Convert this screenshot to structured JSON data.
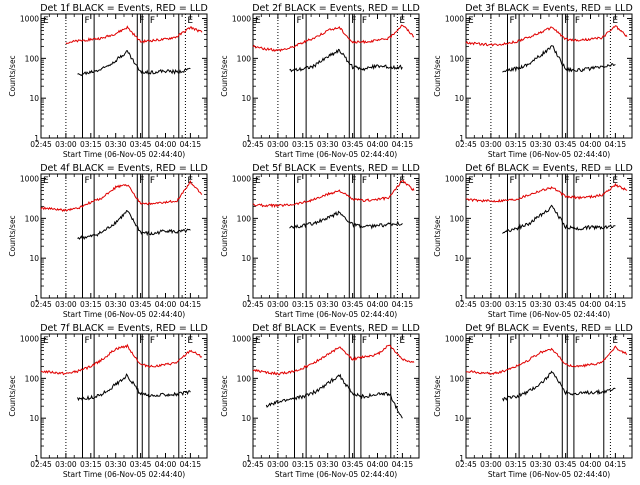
{
  "window": {
    "width": 640,
    "height": 480
  },
  "colors": {
    "events": "#000000",
    "lld": "#e00000",
    "background": "#ffffff"
  },
  "common": {
    "ylabel": "Counts/sec",
    "xlabel": "Start Time (06-Nov-05 02:44:40)",
    "xticks": [
      "02:45",
      "03:00",
      "03:15",
      "03:30",
      "03:45",
      "04:00",
      "04:15"
    ],
    "yticks": [
      "1",
      "10",
      "100",
      "1000"
    ],
    "markers": [
      "E",
      "F",
      "F",
      "F",
      "E"
    ]
  },
  "chart_data": [
    {
      "type": "line",
      "title": "Det 1f BLACK = Events, RED = LLD",
      "xlabel": "Start Time (06-Nov-05 02:44:40)",
      "ylabel": "Counts/sec",
      "xlim": [
        "02:45",
        "04:25"
      ],
      "ylim": [
        1,
        1300
      ],
      "yscale": "log",
      "x": [
        "02:45",
        "02:53",
        "03:00",
        "03:07",
        "03:15",
        "03:22",
        "03:30",
        "03:37",
        "03:45",
        "03:52",
        "04:00",
        "04:07",
        "04:15",
        "04:22"
      ],
      "series": [
        {
          "name": "Events",
          "values": [
            null,
            null,
            null,
            38,
            45,
            55,
            90,
            150,
            45,
            45,
            48,
            45,
            55,
            null
          ]
        },
        {
          "name": "LLD",
          "values": [
            null,
            null,
            250,
            270,
            300,
            320,
            420,
            600,
            260,
            280,
            300,
            350,
            600,
            450
          ]
        }
      ],
      "vlines_solid": [
        "03:10",
        "03:17",
        "03:43",
        "03:46",
        "03:50",
        "04:08"
      ],
      "vlines_dotted": [
        "03:00",
        "04:12"
      ]
    },
    {
      "type": "line",
      "title": "Det 2f BLACK = Events, RED = LLD",
      "xlabel": "Start Time (06-Nov-05 02:44:40)",
      "ylabel": "Counts/sec",
      "xlim": [
        "02:45",
        "04:25"
      ],
      "ylim": [
        1,
        1300
      ],
      "yscale": "log",
      "x": [
        "02:45",
        "02:53",
        "03:00",
        "03:07",
        "03:15",
        "03:22",
        "03:30",
        "03:37",
        "03:45",
        "03:52",
        "04:00",
        "04:07",
        "04:15",
        "04:22"
      ],
      "series": [
        {
          "name": "Events",
          "values": [
            null,
            null,
            null,
            50,
            55,
            65,
            110,
            160,
            60,
            55,
            65,
            60,
            60,
            null
          ]
        },
        {
          "name": "LLD",
          "values": [
            200,
            170,
            160,
            180,
            250,
            330,
            500,
            600,
            250,
            260,
            280,
            320,
            700,
            350
          ]
        }
      ],
      "vlines_solid": [
        "03:10",
        "03:17",
        "03:43",
        "03:46",
        "03:50",
        "04:08"
      ],
      "vlines_dotted": [
        "03:00",
        "04:12"
      ]
    },
    {
      "type": "line",
      "title": "Det 3f BLACK = Events, RED = LLD",
      "xlabel": "Start Time (06-Nov-05 02:44:40)",
      "ylabel": "Counts/sec",
      "xlim": [
        "02:45",
        "04:25"
      ],
      "ylim": [
        1,
        1300
      ],
      "yscale": "log",
      "x": [
        "02:45",
        "02:53",
        "03:00",
        "03:07",
        "03:15",
        "03:22",
        "03:30",
        "03:37",
        "03:45",
        "03:52",
        "04:00",
        "04:07",
        "04:15",
        "04:22"
      ],
      "series": [
        {
          "name": "Events",
          "values": [
            null,
            null,
            null,
            45,
            55,
            70,
            120,
            200,
            55,
            50,
            55,
            60,
            70,
            null
          ]
        },
        {
          "name": "LLD",
          "values": [
            250,
            230,
            220,
            230,
            260,
            330,
            450,
            600,
            300,
            280,
            300,
            330,
            650,
            350
          ]
        }
      ],
      "vlines_solid": [
        "03:10",
        "03:17",
        "03:43",
        "03:46",
        "03:50",
        "04:08"
      ],
      "vlines_dotted": [
        "03:00",
        "04:12"
      ]
    },
    {
      "type": "line",
      "title": "Det 4f BLACK = Events, RED = LLD",
      "xlabel": "Start Time (06-Nov-05 02:44:40)",
      "ylabel": "Counts/sec",
      "xlim": [
        "02:45",
        "04:25"
      ],
      "ylim": [
        1,
        1300
      ],
      "yscale": "log",
      "x": [
        "02:45",
        "02:53",
        "03:00",
        "03:07",
        "03:15",
        "03:22",
        "03:30",
        "03:37",
        "03:45",
        "03:52",
        "04:00",
        "04:07",
        "04:15",
        "04:22"
      ],
      "series": [
        {
          "name": "Events",
          "values": [
            null,
            null,
            null,
            32,
            35,
            45,
            80,
            150,
            45,
            40,
            50,
            45,
            50,
            null
          ]
        },
        {
          "name": "LLD",
          "values": [
            180,
            170,
            160,
            180,
            250,
            330,
            600,
            700,
            240,
            230,
            250,
            280,
            800,
            400
          ]
        }
      ],
      "vlines_solid": [
        "03:10",
        "03:17",
        "03:43",
        "03:46",
        "03:50",
        "04:08"
      ],
      "vlines_dotted": [
        "03:00",
        "04:12"
      ]
    },
    {
      "type": "line",
      "title": "Det 5f BLACK = Events, RED = LLD",
      "xlabel": "Start Time (06-Nov-05 02:44:40)",
      "ylabel": "Counts/sec",
      "xlim": [
        "02:45",
        "04:25"
      ],
      "ylim": [
        1,
        1300
      ],
      "yscale": "log",
      "x": [
        "02:45",
        "02:53",
        "03:00",
        "03:07",
        "03:15",
        "03:22",
        "03:30",
        "03:37",
        "03:45",
        "03:52",
        "04:00",
        "04:07",
        "04:15",
        "04:22"
      ],
      "series": [
        {
          "name": "Events",
          "values": [
            null,
            null,
            null,
            60,
            65,
            75,
            100,
            140,
            70,
            60,
            65,
            70,
            75,
            null
          ]
        },
        {
          "name": "LLD",
          "values": [
            220,
            210,
            210,
            220,
            250,
            300,
            400,
            500,
            300,
            280,
            300,
            330,
            900,
            500
          ]
        }
      ],
      "vlines_solid": [
        "03:10",
        "03:17",
        "03:43",
        "03:46",
        "03:50",
        "04:08"
      ],
      "vlines_dotted": [
        "03:00",
        "04:12"
      ]
    },
    {
      "type": "line",
      "title": "Det 6f BLACK = Events, RED = LLD",
      "xlabel": "Start Time (06-Nov-05 02:44:40)",
      "ylabel": "Counts/sec",
      "xlim": [
        "02:45",
        "04:25"
      ],
      "ylim": [
        1,
        1300
      ],
      "yscale": "log",
      "x": [
        "02:45",
        "02:53",
        "03:00",
        "03:07",
        "03:15",
        "03:22",
        "03:30",
        "03:37",
        "03:45",
        "03:52",
        "04:00",
        "04:07",
        "04:15",
        "04:22"
      ],
      "series": [
        {
          "name": "Events",
          "values": [
            null,
            null,
            null,
            45,
            55,
            70,
            120,
            200,
            60,
            55,
            60,
            60,
            65,
            null
          ]
        },
        {
          "name": "LLD",
          "values": [
            300,
            280,
            270,
            280,
            300,
            380,
            500,
            600,
            350,
            330,
            350,
            380,
            700,
            500
          ]
        }
      ],
      "vlines_solid": [
        "03:10",
        "03:17",
        "03:43",
        "03:46",
        "03:50",
        "04:08"
      ],
      "vlines_dotted": [
        "03:00",
        "04:12"
      ]
    },
    {
      "type": "line",
      "title": "Det 7f BLACK = Events, RED = LLD",
      "xlabel": "Start Time (06-Nov-05 02:44:40)",
      "ylabel": "Counts/sec",
      "xlim": [
        "02:45",
        "04:25"
      ],
      "ylim": [
        1,
        1300
      ],
      "yscale": "log",
      "x": [
        "02:45",
        "02:53",
        "03:00",
        "03:07",
        "03:15",
        "03:22",
        "03:30",
        "03:37",
        "03:45",
        "03:52",
        "04:00",
        "04:07",
        "04:15",
        "04:22"
      ],
      "series": [
        {
          "name": "Events",
          "values": [
            null,
            null,
            null,
            30,
            32,
            40,
            70,
            120,
            40,
            35,
            40,
            40,
            45,
            null
          ]
        },
        {
          "name": "LLD",
          "values": [
            150,
            140,
            130,
            150,
            200,
            300,
            550,
            650,
            220,
            200,
            220,
            250,
            500,
            350
          ]
        }
      ],
      "vlines_solid": [
        "03:10",
        "03:17",
        "03:43",
        "03:46",
        "03:50",
        "04:08"
      ],
      "vlines_dotted": [
        "03:00",
        "04:12"
      ]
    },
    {
      "type": "line",
      "title": "Det 8f BLACK = Events, RED = LLD",
      "xlabel": "Start Time (06-Nov-05 02:44:40)",
      "ylabel": "Counts/sec",
      "xlim": [
        "02:45",
        "04:25"
      ],
      "ylim": [
        1,
        1300
      ],
      "yscale": "log",
      "x": [
        "02:45",
        "02:53",
        "03:00",
        "03:07",
        "03:15",
        "03:22",
        "03:30",
        "03:37",
        "03:45",
        "03:52",
        "04:00",
        "04:07",
        "04:15",
        "04:22"
      ],
      "series": [
        {
          "name": "Events",
          "values": [
            null,
            20,
            25,
            30,
            35,
            45,
            75,
            120,
            40,
            35,
            40,
            40,
            10,
            null
          ]
        },
        {
          "name": "LLD",
          "values": [
            160,
            140,
            130,
            140,
            180,
            250,
            400,
            600,
            300,
            350,
            400,
            700,
            300,
            250
          ]
        }
      ],
      "vlines_solid": [
        "03:10",
        "03:17",
        "03:43",
        "03:46",
        "03:50",
        "04:08"
      ],
      "vlines_dotted": [
        "03:00",
        "04:12"
      ]
    },
    {
      "type": "line",
      "title": "Det 9f BLACK = Events, RED = LLD",
      "xlabel": "Start Time (06-Nov-05 02:44:40)",
      "ylabel": "Counts/sec",
      "xlim": [
        "02:45",
        "04:25"
      ],
      "ylim": [
        1,
        1300
      ],
      "yscale": "log",
      "x": [
        "02:45",
        "02:53",
        "03:00",
        "03:07",
        "03:15",
        "03:22",
        "03:30",
        "03:37",
        "03:45",
        "03:52",
        "04:00",
        "04:07",
        "04:15",
        "04:22"
      ],
      "series": [
        {
          "name": "Events",
          "values": [
            null,
            null,
            null,
            30,
            35,
            45,
            75,
            140,
            45,
            40,
            45,
            45,
            55,
            null
          ]
        },
        {
          "name": "LLD",
          "values": [
            150,
            140,
            130,
            150,
            200,
            280,
            450,
            550,
            220,
            200,
            220,
            250,
            600,
            400
          ]
        }
      ],
      "vlines_solid": [
        "03:10",
        "03:17",
        "03:43",
        "03:46",
        "03:50",
        "04:08"
      ],
      "vlines_dotted": [
        "03:00",
        "04:12"
      ]
    }
  ]
}
